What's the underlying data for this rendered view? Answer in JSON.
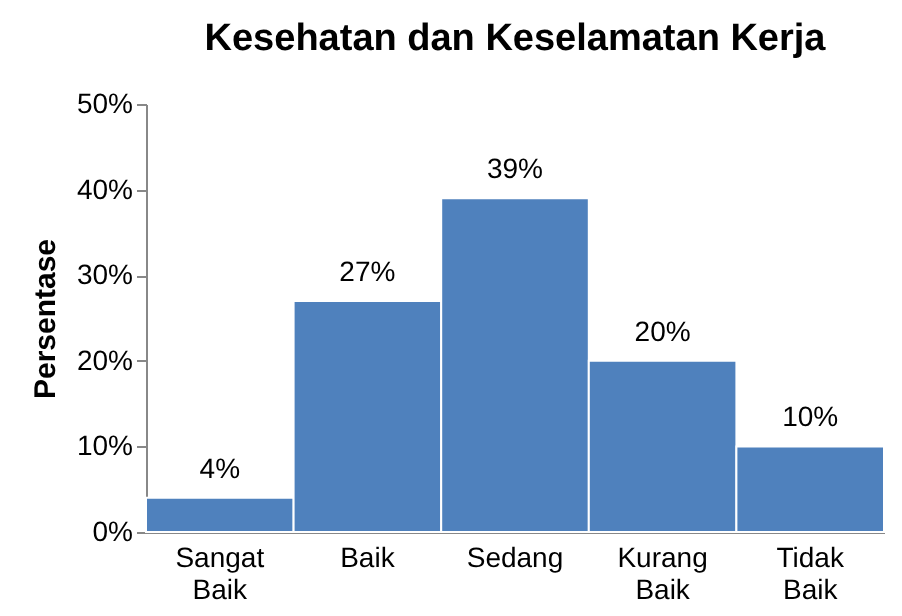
{
  "chart_data": {
    "type": "bar",
    "title": "Kesehatan dan Keselamatan Kerja",
    "ylabel": "Persentase",
    "categories": [
      "Sangat Baik",
      "Baik",
      "Sedang",
      "Kurang Baik",
      "Tidak Baik"
    ],
    "values": [
      4,
      27,
      39,
      20,
      10
    ],
    "value_labels": [
      "4%",
      "27%",
      "39%",
      "20%",
      "10%"
    ],
    "color": "#4f81bd",
    "ylim": [
      0,
      50
    ],
    "yticks": [
      {
        "value": 0,
        "label": "0%"
      },
      {
        "value": 10,
        "label": "10%"
      },
      {
        "value": 20,
        "label": "20%"
      },
      {
        "value": 30,
        "label": "30%"
      },
      {
        "value": 40,
        "label": "40%"
      },
      {
        "value": 50,
        "label": "50%"
      }
    ],
    "grid": false
  }
}
